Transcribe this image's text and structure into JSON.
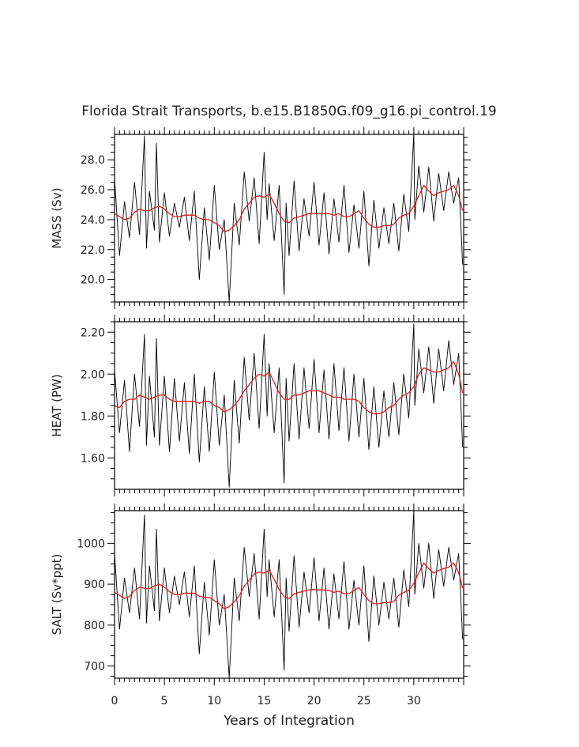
{
  "figure": {
    "title": "Florida Strait Transports, b.e15.B1850G.f09_g16.pi_control.19",
    "xlabel": "Years of Integration"
  },
  "chart_data": [
    {
      "type": "line",
      "ylabel": "MASS (Sv)",
      "xlim": [
        0,
        35
      ],
      "ylim": [
        18.5,
        29.7
      ],
      "ytick_values": [
        20,
        22,
        24,
        26,
        28
      ],
      "ytick_labels": [
        "20.0",
        "22.0",
        "24.0",
        "26.0",
        "28.0"
      ],
      "xtick_values": [
        0,
        5,
        10,
        15,
        20,
        25,
        30
      ],
      "xtick_labels": [
        "0",
        "5",
        "10",
        "15",
        "20",
        "25",
        "30"
      ],
      "series": [
        {
          "role": "monthly",
          "color": "#000000",
          "x": [
            0,
            0.5,
            1,
            1.5,
            2,
            2.5,
            3,
            3.2,
            3.5,
            4,
            4.2,
            4.5,
            5,
            5.5,
            6,
            6.5,
            7,
            7.5,
            8,
            8.5,
            9,
            9.5,
            10,
            10.5,
            11,
            11.5,
            12,
            12.5,
            13,
            13.5,
            14,
            14.5,
            15,
            15.3,
            15.5,
            16,
            16.5,
            17,
            17.2,
            17.5,
            18,
            18.5,
            19,
            19.5,
            20,
            20.5,
            21,
            21.5,
            22,
            22.5,
            23,
            23.5,
            24,
            24.5,
            25,
            25.5,
            26,
            26.5,
            27,
            27.5,
            28,
            28.5,
            29,
            29.5,
            30,
            30.1,
            30.5,
            31,
            31.5,
            32,
            32.5,
            33,
            33.5,
            34,
            34.5,
            34.9
          ],
          "y": [
            26.8,
            21.6,
            25.2,
            22.8,
            26.5,
            23.0,
            29.6,
            22.1,
            25.9,
            23.3,
            29.1,
            22.5,
            25.8,
            22.9,
            25.1,
            23.5,
            25.5,
            22.6,
            25.9,
            20.0,
            24.8,
            21.3,
            26.3,
            22.0,
            24.0,
            18.5,
            25.1,
            22.3,
            27.2,
            23.9,
            26.8,
            22.4,
            28.5,
            24.0,
            26.4,
            22.6,
            26.3,
            19.0,
            25.1,
            21.6,
            26.6,
            21.9,
            25.4,
            22.9,
            26.5,
            22.3,
            25.8,
            21.7,
            25.4,
            22.5,
            26.3,
            21.8,
            25.0,
            22.1,
            25.9,
            20.9,
            25.3,
            22.1,
            24.8,
            22.4,
            25.1,
            21.9,
            25.7,
            23.2,
            29.8,
            24.0,
            27.6,
            24.5,
            27.5,
            23.9,
            27.1,
            24.6,
            27.2,
            25.1,
            26.8,
            21.0
          ]
        },
        {
          "role": "running-mean",
          "color": "#e01b1b",
          "x": [
            0,
            0.5,
            1,
            1.5,
            2,
            2.5,
            3,
            3.5,
            4,
            4.5,
            5,
            5.5,
            6,
            6.5,
            7,
            7.5,
            8,
            8.5,
            9,
            9.5,
            10,
            10.5,
            11,
            11.5,
            12,
            12.5,
            13,
            13.5,
            14,
            14.5,
            15,
            15.5,
            16,
            16.5,
            17,
            17.5,
            18,
            18.5,
            19,
            19.5,
            20,
            20.5,
            21,
            21.5,
            22,
            22.5,
            23,
            23.5,
            24,
            24.5,
            25,
            25.5,
            26,
            26.5,
            27,
            27.5,
            28,
            28.5,
            29,
            29.5,
            30,
            30.5,
            31,
            31.5,
            32,
            32.5,
            33,
            33.5,
            34,
            34.5,
            34.9
          ],
          "y": [
            24.4,
            24.2,
            24.0,
            24.1,
            24.5,
            24.7,
            24.6,
            24.6,
            24.8,
            24.9,
            24.7,
            24.4,
            24.2,
            24.2,
            24.3,
            24.3,
            24.3,
            24.1,
            24.0,
            24.0,
            23.8,
            23.6,
            23.2,
            23.3,
            23.6,
            24.0,
            24.7,
            25.1,
            25.5,
            25.6,
            25.5,
            25.7,
            25.1,
            24.4,
            23.9,
            23.8,
            24.1,
            24.2,
            24.3,
            24.4,
            24.4,
            24.4,
            24.4,
            24.4,
            24.3,
            24.4,
            24.2,
            24.2,
            24.4,
            24.6,
            24.1,
            23.7,
            23.5,
            23.5,
            23.6,
            23.6,
            23.7,
            24.1,
            24.3,
            24.4,
            24.9,
            25.6,
            26.3,
            25.9,
            25.6,
            25.8,
            25.9,
            26.0,
            26.3,
            25.6,
            24.6
          ]
        }
      ]
    },
    {
      "type": "line",
      "ylabel": "HEAT (PW)",
      "xlim": [
        0,
        35
      ],
      "ylim": [
        1.45,
        2.25
      ],
      "ytick_values": [
        1.6,
        1.8,
        2.0,
        2.2
      ],
      "ytick_labels": [
        "1.60",
        "1.80",
        "2.00",
        "2.20"
      ],
      "xtick_values": [
        0,
        5,
        10,
        15,
        20,
        25,
        30
      ],
      "xtick_labels": [
        "0",
        "5",
        "10",
        "15",
        "20",
        "25",
        "30"
      ],
      "series": [
        {
          "role": "monthly",
          "color": "#000000",
          "x": [
            0,
            0.5,
            1,
            1.5,
            2,
            2.5,
            3,
            3.2,
            3.5,
            4,
            4.2,
            4.5,
            5,
            5.5,
            6,
            6.5,
            7,
            7.5,
            8,
            8.5,
            9,
            9.5,
            10,
            10.5,
            11,
            11.5,
            12,
            12.5,
            13,
            13.5,
            14,
            14.5,
            15,
            15.3,
            15.5,
            16,
            16.5,
            17,
            17.2,
            17.5,
            18,
            18.5,
            19,
            19.5,
            20,
            20.5,
            21,
            21.5,
            22,
            22.5,
            23,
            23.5,
            24,
            24.5,
            25,
            25.5,
            26,
            26.5,
            27,
            27.5,
            28,
            28.5,
            29,
            29.5,
            30,
            30.1,
            30.5,
            31,
            31.5,
            32,
            32.5,
            33,
            33.5,
            34,
            34.5,
            34.9
          ],
          "y": [
            2.02,
            1.72,
            1.97,
            1.63,
            2.0,
            1.75,
            2.19,
            1.66,
            1.99,
            1.7,
            2.17,
            1.66,
            1.99,
            1.63,
            1.98,
            1.68,
            1.96,
            1.62,
            2.0,
            1.58,
            1.94,
            1.63,
            2.01,
            1.66,
            1.9,
            1.46,
            1.97,
            1.67,
            2.08,
            1.78,
            2.1,
            1.74,
            2.19,
            1.8,
            2.05,
            1.72,
            2.03,
            1.48,
            1.98,
            1.68,
            2.05,
            1.69,
            2.03,
            1.74,
            2.07,
            1.72,
            2.02,
            1.69,
            2.05,
            1.73,
            2.03,
            1.68,
            2.0,
            1.7,
            1.98,
            1.64,
            1.94,
            1.65,
            1.92,
            1.7,
            1.96,
            1.71,
            2.0,
            1.79,
            2.24,
            1.85,
            2.12,
            1.91,
            2.13,
            1.86,
            2.12,
            1.92,
            2.16,
            1.95,
            2.1,
            1.65
          ]
        },
        {
          "role": "running-mean",
          "color": "#e01b1b",
          "x": [
            0,
            0.5,
            1,
            1.5,
            2,
            2.5,
            3,
            3.5,
            4,
            4.5,
            5,
            5.5,
            6,
            6.5,
            7,
            7.5,
            8,
            8.5,
            9,
            9.5,
            10,
            10.5,
            11,
            11.5,
            12,
            12.5,
            13,
            13.5,
            14,
            14.5,
            15,
            15.5,
            16,
            16.5,
            17,
            17.5,
            18,
            18.5,
            19,
            19.5,
            20,
            20.5,
            21,
            21.5,
            22,
            22.5,
            23,
            23.5,
            24,
            24.5,
            25,
            25.5,
            26,
            26.5,
            27,
            27.5,
            28,
            28.5,
            29,
            29.5,
            30,
            30.5,
            31,
            31.5,
            32,
            32.5,
            33,
            33.5,
            34,
            34.5,
            34.9
          ],
          "y": [
            1.85,
            1.84,
            1.87,
            1.88,
            1.88,
            1.9,
            1.89,
            1.88,
            1.89,
            1.9,
            1.9,
            1.88,
            1.87,
            1.87,
            1.87,
            1.87,
            1.87,
            1.86,
            1.87,
            1.87,
            1.85,
            1.84,
            1.82,
            1.83,
            1.85,
            1.88,
            1.92,
            1.95,
            1.98,
            2.0,
            1.99,
            2.01,
            1.96,
            1.91,
            1.88,
            1.88,
            1.9,
            1.9,
            1.91,
            1.92,
            1.92,
            1.92,
            1.91,
            1.9,
            1.89,
            1.89,
            1.88,
            1.88,
            1.88,
            1.87,
            1.84,
            1.82,
            1.81,
            1.81,
            1.82,
            1.84,
            1.85,
            1.88,
            1.9,
            1.91,
            1.94,
            2.0,
            2.03,
            2.02,
            2.01,
            2.01,
            2.02,
            2.03,
            2.06,
            2.0,
            1.91
          ]
        }
      ]
    },
    {
      "type": "line",
      "ylabel": "SALT (Sv*ppt)",
      "xlim": [
        0,
        35
      ],
      "ylim": [
        670,
        1080
      ],
      "ytick_values": [
        700,
        800,
        900,
        1000
      ],
      "ytick_labels": [
        "700",
        "800",
        "900",
        "1000"
      ],
      "xtick_values": [
        0,
        5,
        10,
        15,
        20,
        25,
        30
      ],
      "xtick_labels": [
        "0",
        "5",
        "10",
        "15",
        "20",
        "25",
        "30"
      ],
      "series": [
        {
          "role": "monthly",
          "color": "#000000",
          "x": [
            0,
            0.5,
            1,
            1.5,
            2,
            2.5,
            3,
            3.2,
            3.5,
            4,
            4.2,
            4.5,
            5,
            5.5,
            6,
            6.5,
            7,
            7.5,
            8,
            8.5,
            9,
            9.5,
            10,
            10.5,
            11,
            11.5,
            12,
            12.5,
            13,
            13.5,
            14,
            14.5,
            15,
            15.3,
            15.5,
            16,
            16.5,
            17,
            17.2,
            17.5,
            18,
            18.5,
            19,
            19.5,
            20,
            20.5,
            21,
            21.5,
            22,
            22.5,
            23,
            23.5,
            24,
            24.5,
            25,
            25.5,
            26,
            26.5,
            27,
            27.5,
            28,
            28.5,
            29,
            29.5,
            30,
            30.1,
            30.5,
            31,
            31.5,
            32,
            32.5,
            33,
            33.5,
            34,
            34.5,
            34.9
          ],
          "y": [
            975,
            790,
            915,
            830,
            940,
            815,
            1070,
            805,
            945,
            835,
            1035,
            810,
            940,
            830,
            920,
            850,
            930,
            820,
            945,
            730,
            905,
            775,
            960,
            800,
            875,
            670,
            915,
            810,
            990,
            870,
            975,
            815,
            1035,
            870,
            960,
            820,
            960,
            690,
            915,
            785,
            970,
            795,
            930,
            830,
            965,
            810,
            940,
            790,
            925,
            815,
            955,
            790,
            910,
            800,
            945,
            760,
            920,
            800,
            905,
            815,
            915,
            795,
            935,
            845,
            1080,
            875,
            1000,
            890,
            1000,
            865,
            985,
            895,
            990,
            910,
            975,
            765
          ]
        },
        {
          "role": "running-mean",
          "color": "#e01b1b",
          "x": [
            0,
            0.5,
            1,
            1.5,
            2,
            2.5,
            3,
            3.5,
            4,
            4.5,
            5,
            5.5,
            6,
            6.5,
            7,
            7.5,
            8,
            8.5,
            9,
            9.5,
            10,
            10.5,
            11,
            11.5,
            12,
            12.5,
            13,
            13.5,
            14,
            14.5,
            15,
            15.5,
            16,
            16.5,
            17,
            17.5,
            18,
            18.5,
            19,
            19.5,
            20,
            20.5,
            21,
            21.5,
            22,
            22.5,
            23,
            23.5,
            24,
            24.5,
            25,
            25.5,
            26,
            26.5,
            27,
            27.5,
            28,
            28.5,
            29,
            29.5,
            30,
            30.5,
            31,
            31.5,
            32,
            32.5,
            33,
            33.5,
            34,
            34.5,
            34.9
          ],
          "y": [
            880,
            873,
            865,
            870,
            885,
            893,
            890,
            889,
            896,
            900,
            893,
            882,
            875,
            875,
            878,
            878,
            878,
            871,
            868,
            868,
            860,
            852,
            840,
            845,
            857,
            872,
            895,
            910,
            925,
            930,
            927,
            935,
            912,
            887,
            869,
            865,
            876,
            880,
            883,
            886,
            887,
            886,
            886,
            885,
            880,
            883,
            877,
            877,
            885,
            892,
            875,
            860,
            852,
            852,
            855,
            855,
            858,
            873,
            880,
            885,
            902,
            928,
            952,
            938,
            927,
            934,
            938,
            942,
            952,
            928,
            890
          ]
        }
      ]
    }
  ]
}
